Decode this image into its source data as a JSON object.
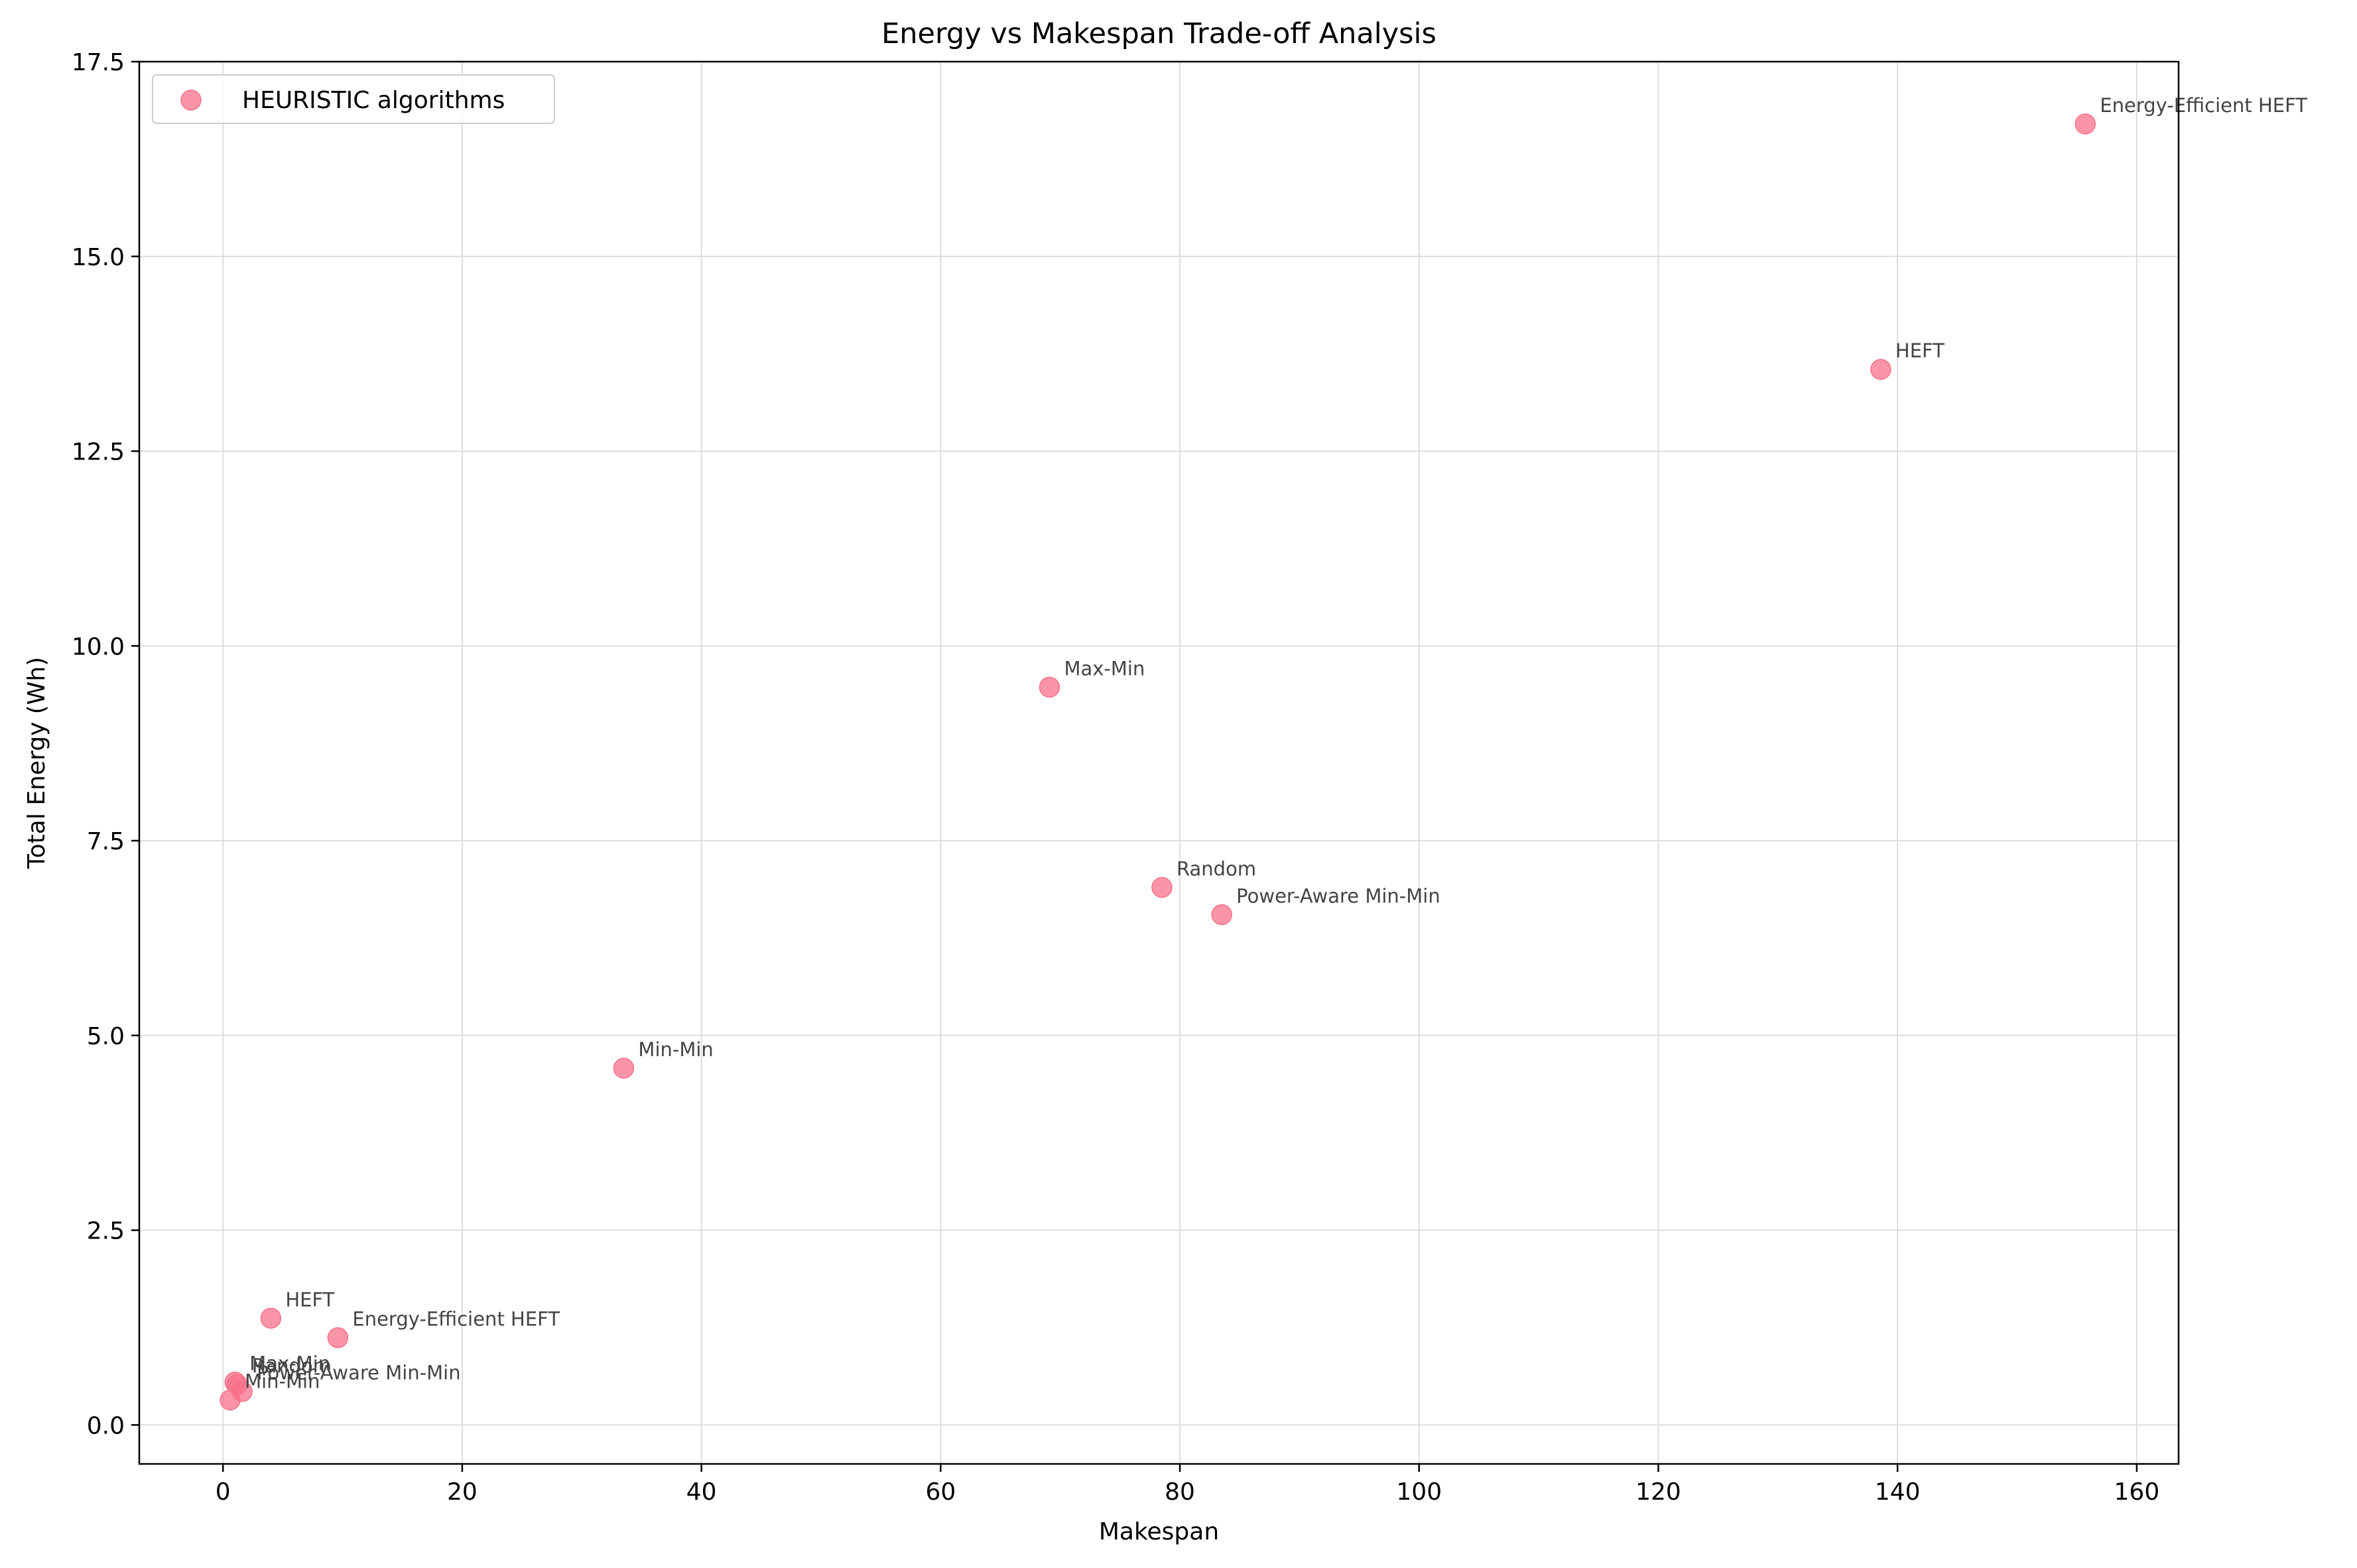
{
  "chart_data": {
    "type": "scatter",
    "title": "Energy vs Makespan Trade-off Analysis",
    "xlabel": "Makespan",
    "ylabel": "Total Energy (Wh)",
    "xlim": [
      -7,
      163.5
    ],
    "ylim": [
      -0.5,
      17.5
    ],
    "xticks": [
      0,
      20,
      40,
      60,
      80,
      100,
      120,
      140,
      160
    ],
    "xtick_labels": [
      "0",
      "20",
      "40",
      "60",
      "80",
      "100",
      "120",
      "140",
      "160"
    ],
    "yticks": [
      0,
      2.5,
      5,
      7.5,
      10,
      12.5,
      15,
      17.5
    ],
    "ytick_labels": [
      "0.0",
      "2.5",
      "5.0",
      "7.5",
      "10.0",
      "12.5",
      "15.0",
      "17.5"
    ],
    "grid": true,
    "legend_position": "top-left",
    "series": [
      {
        "name": "HEURISTIC algorithms",
        "color": "#f77189",
        "points": [
          {
            "label": "Energy-Efficient HEFT",
            "x": 155.7,
            "y": 16.7
          },
          {
            "label": "HEFT",
            "x": 138.6,
            "y": 13.55
          },
          {
            "label": "Max-Min",
            "x": 69.1,
            "y": 9.47
          },
          {
            "label": "Random",
            "x": 78.5,
            "y": 6.9
          },
          {
            "label": "Power-Aware Min-Min",
            "x": 83.5,
            "y": 6.55
          },
          {
            "label": "Min-Min",
            "x": 33.5,
            "y": 4.58
          },
          {
            "label": "HEFT",
            "x": 4.0,
            "y": 1.37
          },
          {
            "label": "Energy-Efficient HEFT",
            "x": 9.6,
            "y": 1.12
          },
          {
            "label": "Max-Min",
            "x": 1.0,
            "y": 0.55
          },
          {
            "label": "Random",
            "x": 1.2,
            "y": 0.52
          },
          {
            "label": "Power-Aware Min-Min",
            "x": 1.6,
            "y": 0.43
          },
          {
            "label": "Min-Min",
            "x": 0.6,
            "y": 0.32
          }
        ]
      }
    ]
  }
}
